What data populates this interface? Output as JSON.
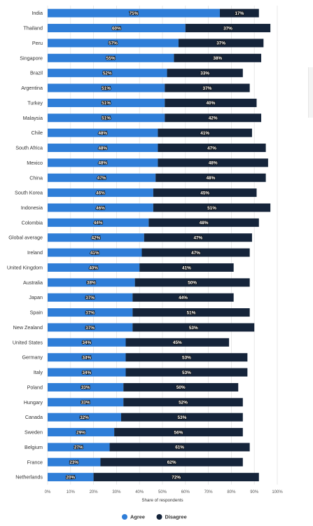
{
  "chart_data": {
    "type": "bar",
    "orientation": "horizontal",
    "stacked": true,
    "categories": [
      "India",
      "Thailand",
      "Peru",
      "Singapore",
      "Brazil",
      "Argentina",
      "Turkey",
      "Malaysia",
      "Chile",
      "South Africa",
      "Mexico",
      "China",
      "South Korea",
      "Indonesia",
      "Colombia",
      "Global average",
      "Ireland",
      "United Kingdom",
      "Australia",
      "Japan",
      "Spain",
      "New Zealand",
      "United States",
      "Germany",
      "Italy",
      "Poland",
      "Hungary",
      "Canada",
      "Sweden",
      "Belgium",
      "France",
      "Netherlands"
    ],
    "series": [
      {
        "name": "Agree",
        "color": "#2f7ed8",
        "values": [
          75,
          60,
          57,
          55,
          52,
          51,
          51,
          51,
          48,
          48,
          48,
          47,
          46,
          46,
          44,
          42,
          41,
          40,
          38,
          37,
          37,
          37,
          34,
          34,
          34,
          33,
          33,
          32,
          29,
          27,
          23,
          20
        ]
      },
      {
        "name": "Disagree",
        "color": "#15243a",
        "values": [
          17,
          37,
          37,
          38,
          33,
          37,
          40,
          42,
          41,
          47,
          48,
          48,
          45,
          51,
          48,
          47,
          47,
          41,
          50,
          44,
          51,
          53,
          45,
          53,
          53,
          50,
          52,
          53,
          56,
          61,
          62,
          72
        ]
      }
    ],
    "value_suffix": "%",
    "xlim": [
      0,
      100
    ],
    "xticks": [
      "0%",
      "10%",
      "20%",
      "30%",
      "40%",
      "50%",
      "60%",
      "70%",
      "80%",
      "90%",
      "100%"
    ],
    "xlabel": "Share of respondents",
    "grid": true,
    "legend_position": "bottom-center"
  }
}
